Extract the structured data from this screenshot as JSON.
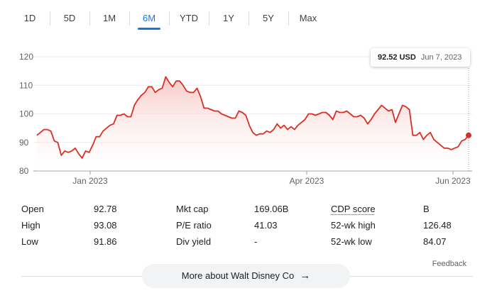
{
  "tabs": [
    "1D",
    "5D",
    "1M",
    "6M",
    "YTD",
    "1Y",
    "5Y",
    "Max"
  ],
  "active_tab": "6M",
  "tooltip": {
    "price": "92.52 USD",
    "date": "Jun 7, 2023"
  },
  "stats": {
    "rows": [
      [
        {
          "label": "Open",
          "value": "92.78"
        },
        {
          "label": "Mkt cap",
          "value": "169.06B"
        },
        {
          "label": "CDP score",
          "value": "B"
        }
      ],
      [
        {
          "label": "High",
          "value": "93.08"
        },
        {
          "label": "P/E ratio",
          "value": "41.03"
        },
        {
          "label": "52-wk high",
          "value": "126.48"
        }
      ],
      [
        {
          "label": "Low",
          "value": "91.86"
        },
        {
          "label": "Div yield",
          "value": "-"
        },
        {
          "label": "52-wk low",
          "value": "84.07"
        }
      ]
    ]
  },
  "more_button": "More about Walt Disney Co",
  "feedback": "Feedback",
  "colors": {
    "accent": "#1a73e8",
    "line": "#d93025",
    "fill": "#fce8e6"
  },
  "chart_data": {
    "type": "area",
    "yticks": [
      80,
      90,
      100,
      110,
      120
    ],
    "ylim": [
      80,
      120
    ],
    "xticks": [
      "Jan 2023",
      "Apr 2023",
      "Jun 2023"
    ],
    "values": [
      92.5,
      93.5,
      94.5,
      94.5,
      94,
      90.5,
      90,
      85.5,
      87,
      86.5,
      87,
      88,
      86,
      84.5,
      87,
      86.5,
      89,
      92,
      92,
      94,
      95,
      96,
      96.5,
      99.5,
      99.5,
      100,
      99,
      99,
      103,
      105,
      106.5,
      107.5,
      109.5,
      109.5,
      107.5,
      108.5,
      109,
      113,
      111,
      109.5,
      111.5,
      111.5,
      110,
      108,
      107.5,
      107.5,
      109,
      106,
      102,
      102,
      101.5,
      101,
      101,
      100,
      99.5,
      99,
      98.5,
      98.5,
      101,
      100.5,
      99.5,
      96,
      93.5,
      92.5,
      93,
      93,
      94,
      93.5,
      94.5,
      96.5,
      95,
      96,
      94.5,
      95.5,
      94.5,
      96,
      97,
      98,
      100,
      100,
      99.5,
      100,
      100.5,
      100.5,
      99.5,
      98,
      101,
      100.5,
      100.5,
      101,
      100,
      99,
      99,
      99.5,
      98.5,
      96.5,
      98,
      100,
      101.5,
      103,
      102,
      101,
      101.5,
      97,
      100,
      103,
      102.5,
      101.5,
      92.5,
      92.5,
      93.5,
      91,
      92.5,
      93.5,
      91,
      90,
      89,
      88,
      88,
      87.5,
      88,
      88.5,
      90.5,
      91,
      92.5
    ]
  }
}
